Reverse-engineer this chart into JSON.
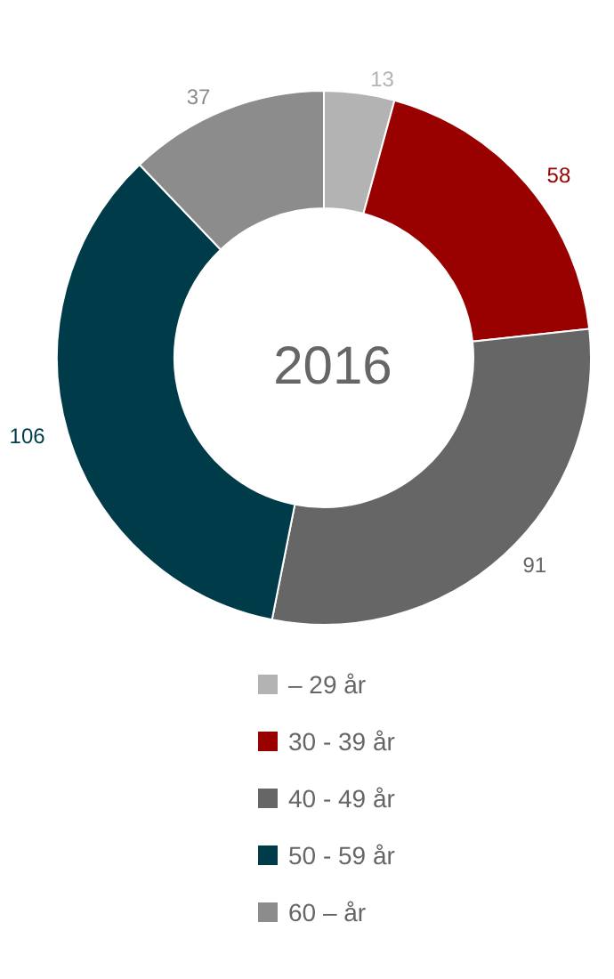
{
  "chart_data": {
    "type": "donut",
    "title": "2016",
    "categories": [
      "– 29 år",
      "30 - 39 år",
      "40 - 49 år",
      "50 - 59 år",
      "60 – år"
    ],
    "values": [
      13,
      58,
      91,
      106,
      37
    ],
    "colors": [
      "#b3b3b3",
      "#990000",
      "#666666",
      "#003b4a",
      "#8c8c8c"
    ],
    "data_labels": true,
    "legend": "bottom"
  }
}
